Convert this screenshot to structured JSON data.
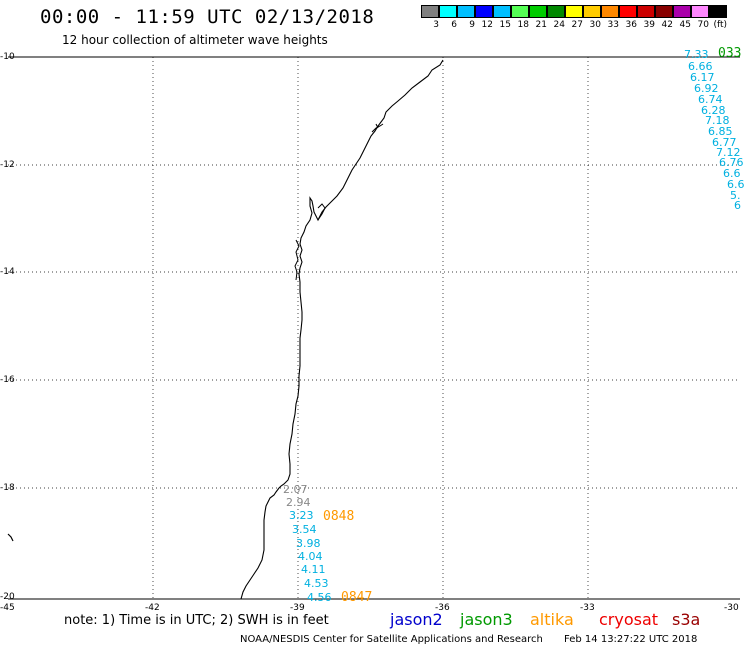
{
  "title": "00:00 - 11:59 UTC 02/13/2018",
  "subtitle": "12 hour collection of altimeter wave heights",
  "legend": {
    "colors": [
      "#808080",
      "#00ffff",
      "#00bfff",
      "#0000ff",
      "#00bfff",
      "#55ff55",
      "#00cc00",
      "#008800",
      "#ffff00",
      "#ffcc00",
      "#ff8800",
      "#ff0000",
      "#cc0000",
      "#880000",
      "#aa00aa",
      "#ff88ff",
      "#000000"
    ],
    "labels": [
      "3",
      "6",
      "9",
      "12",
      "15",
      "18",
      "21",
      "24",
      "27",
      "30",
      "33",
      "36",
      "39",
      "42",
      "45",
      "70",
      "(ft)"
    ]
  },
  "axes": {
    "y_labels": [
      "-10",
      "-12",
      "-14",
      "-16",
      "-18",
      "-20"
    ],
    "x_labels": [
      "-45",
      "-42",
      "-39",
      "-36",
      "-33",
      "-30"
    ]
  },
  "track_right": [
    "7.33",
    "6.66",
    "6.17",
    "6.92",
    "6.74",
    "6.28",
    "7.18",
    "6.85",
    "6.77",
    "7.12",
    "6.76",
    "6.6",
    "6.6",
    "5.",
    "6"
  ],
  "track_right_time": "033",
  "track_bottom_gray": [
    "2.07",
    "2.94"
  ],
  "track_bottom": [
    "3.23",
    "3.54",
    "3.98",
    "4.04",
    "4.11",
    "4.53",
    "4.56"
  ],
  "time_labels": [
    "0848",
    "0847"
  ],
  "note": "note: 1) Time is in UTC; 2) SWH is in feet",
  "satellites": [
    {
      "name": "jason2",
      "color": "#0000cc"
    },
    {
      "name": "jason3",
      "color": "#009900"
    },
    {
      "name": "altika",
      "color": "#ff9900"
    },
    {
      "name": "cryosat",
      "color": "#ee0000"
    },
    {
      "name": "s3a",
      "color": "#990000"
    }
  ],
  "footer": {
    "agency": "NOAA/NESDIS Center for Satellite Applications and Research",
    "timestamp": "Feb 14 13:27:22 UTC 2018"
  }
}
